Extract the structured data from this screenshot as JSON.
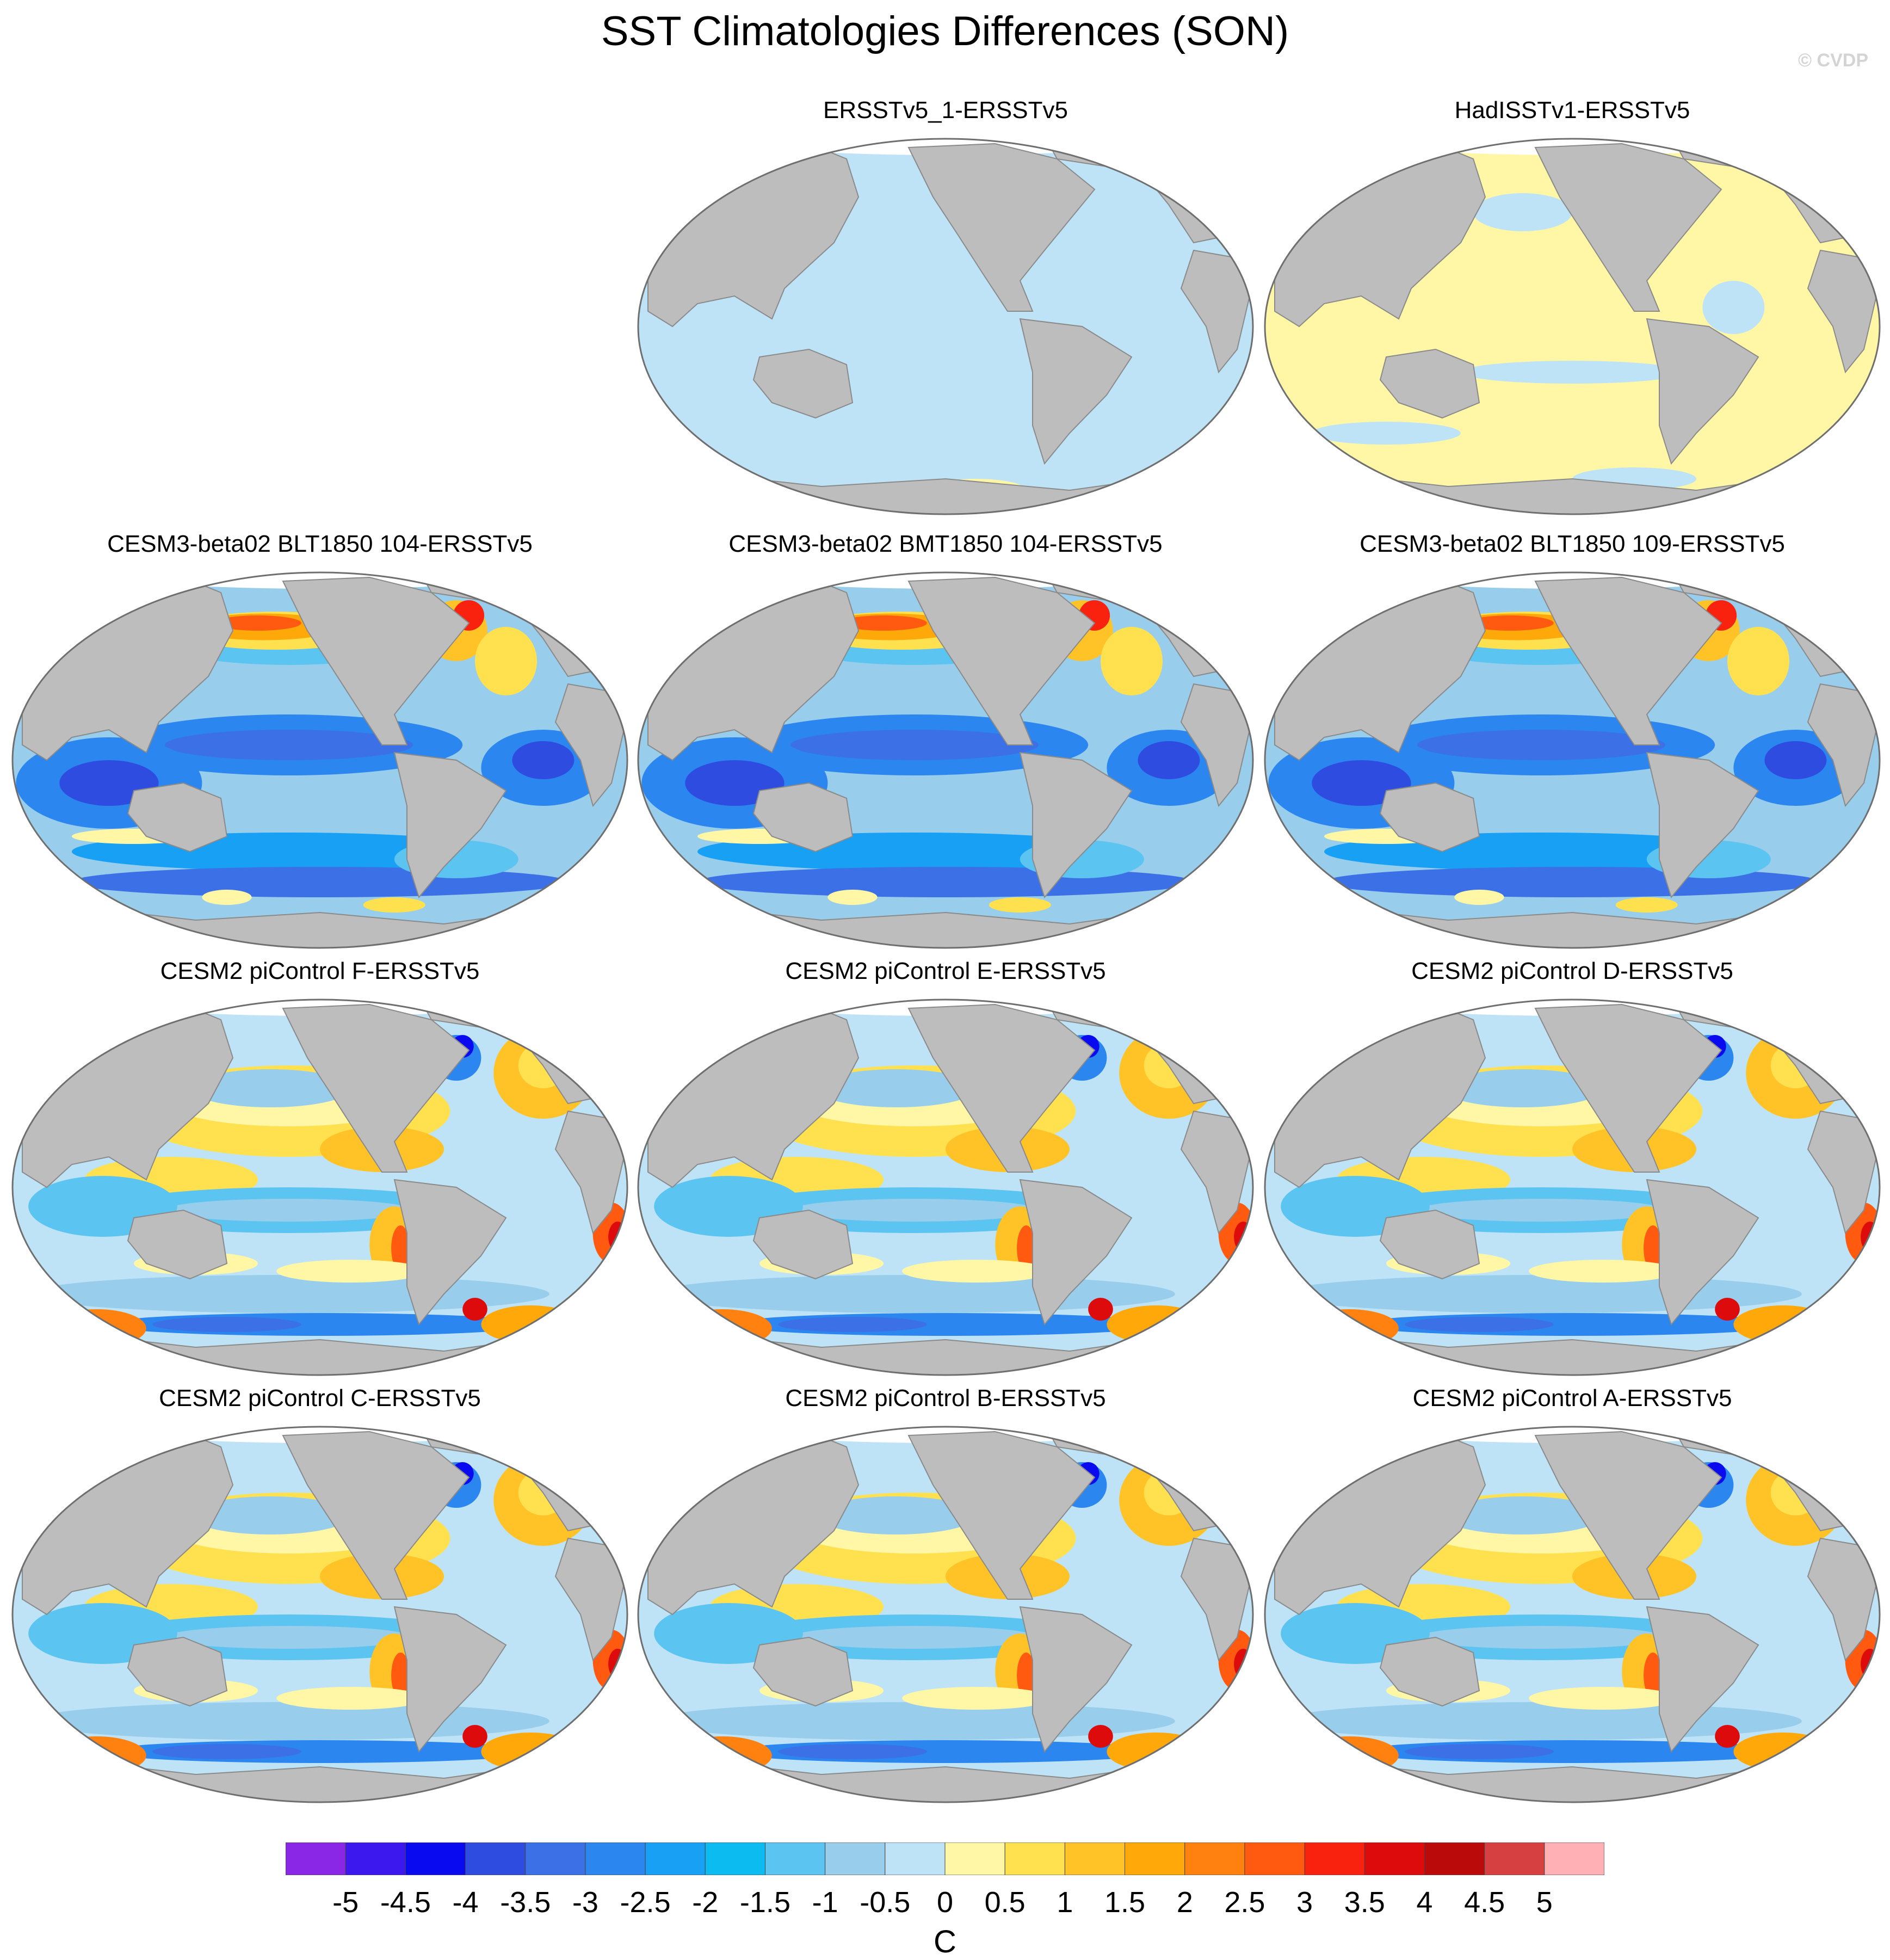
{
  "title": "SST Climatologies Differences (SON)",
  "credit": "© CVDP",
  "chart_data": [
    {
      "type": "heatmap",
      "title": "ERSSTv5_1-ERSSTv5",
      "pattern": "ref1"
    },
    {
      "type": "heatmap",
      "title": "HadISSTv1-ERSSTv5",
      "pattern": "had"
    },
    {
      "type": "heatmap",
      "title": "CESM3-beta02 BLT1850 104-ERSSTv5",
      "pattern": "cesm3"
    },
    {
      "type": "heatmap",
      "title": "CESM3-beta02 BMT1850 104-ERSSTv5",
      "pattern": "cesm3"
    },
    {
      "type": "heatmap",
      "title": "CESM3-beta02 BLT1850 109-ERSSTv5",
      "pattern": "cesm3"
    },
    {
      "type": "heatmap",
      "title": "CESM2 piControl F-ERSSTv5",
      "pattern": "cesm2"
    },
    {
      "type": "heatmap",
      "title": "CESM2 piControl E-ERSSTv5",
      "pattern": "cesm2"
    },
    {
      "type": "heatmap",
      "title": "CESM2 piControl D-ERSSTv5",
      "pattern": "cesm2"
    },
    {
      "type": "heatmap",
      "title": "CESM2 piControl C-ERSSTv5",
      "pattern": "cesm2"
    },
    {
      "type": "heatmap",
      "title": "CESM2 piControl B-ERSSTv5",
      "pattern": "cesm2"
    },
    {
      "type": "heatmap",
      "title": "CESM2 piControl A-ERSSTv5",
      "pattern": "cesm2"
    }
  ],
  "colorbar": {
    "units": "C",
    "labels": [
      "-5",
      "-4.5",
      "-4",
      "-3.5",
      "-3",
      "-2.5",
      "-2",
      "-1.5",
      "-1",
      "-0.5",
      "0",
      "0.5",
      "1",
      "1.5",
      "2",
      "2.5",
      "3",
      "3.5",
      "4",
      "4.5",
      "5"
    ],
    "colors": [
      "#8a26e6",
      "#3c17ee",
      "#0a0af0",
      "#2f4ce0",
      "#3c70e6",
      "#2b86f0",
      "#18a0f4",
      "#0cbcf0",
      "#5cc4f0",
      "#98cdec",
      "#bee3f6",
      "#fff7a6",
      "#ffe150",
      "#ffc328",
      "#ffa80a",
      "#ff8210",
      "#ff5a10",
      "#f8220e",
      "#dd0b0b",
      "#ba0a0a",
      "#d74040",
      "#ffb0b4"
    ]
  },
  "land_color": "#bdbdbd",
  "ice_color": "#ffffff"
}
